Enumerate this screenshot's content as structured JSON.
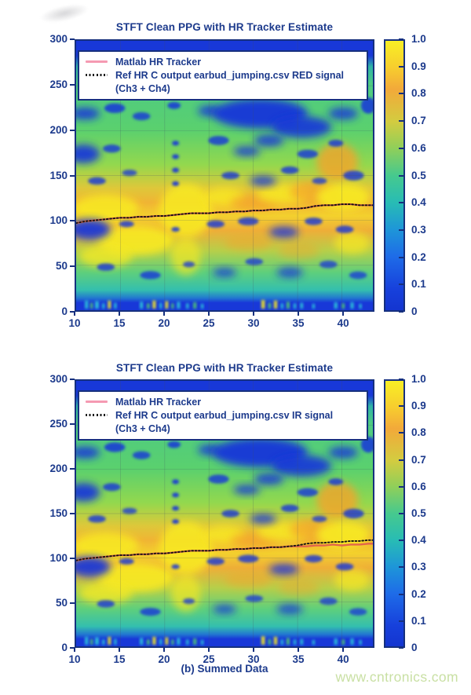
{
  "caption": "(b) Summed Data",
  "watermark": "www.cntronics.com",
  "text_color": "#1c3a8c",
  "axis_color": "#16307e",
  "chart_data": [
    {
      "type": "heatmap",
      "title": "STFT Clean PPG with HR Tracker Estimate",
      "xlabel": "",
      "ylabel": "",
      "x_range": [
        10,
        43.5
      ],
      "y_range": [
        0,
        300
      ],
      "x_ticks": [
        "10",
        "15",
        "20",
        "25",
        "30",
        "35",
        "40"
      ],
      "y_ticks": [
        "300",
        "250",
        "200",
        "150",
        "100",
        "50",
        "0"
      ],
      "grid": true,
      "colorbar_range": [
        0,
        1
      ],
      "colorbar_ticks": [
        "1.0",
        "0.9",
        "0.8",
        "0.7",
        "0.6",
        "0.5",
        "0.4",
        "0.3",
        "0.2",
        "0.1",
        "0"
      ],
      "colormap": "parula",
      "legend_position": "upper left inside plot",
      "legend_lines": [
        {
          "style": "solid",
          "color": "#f59ab2",
          "text": "Matlab HR Tracker"
        },
        {
          "style": "dotted",
          "color": "#141414",
          "text": "Ref HR C output earbud_jumping.csv RED signal"
        },
        {
          "style": "none",
          "color": "",
          "text": "(Ch3 + Ch4)"
        }
      ],
      "heatmap_summary": "Normalized STFT power spectrogram: dark blue bands along the top (280-300) and bottom (0-8) edges, green field with scattered dark blue low-power blobs, broad yellow-orange high-energy ridge around 90-140 following the heart-rate track; bright yellow patches near x=11-20 at 40-75 and around x=22-25.",
      "series_x": [
        10,
        11,
        12,
        13,
        14,
        15,
        16,
        17,
        18,
        19,
        20,
        21,
        22,
        23,
        24,
        25,
        26,
        27,
        28,
        29,
        30,
        31,
        32,
        33,
        34,
        35,
        36,
        37,
        38,
        39,
        40,
        41,
        42,
        43,
        43.5
      ],
      "series": [
        {
          "name": "Matlab HR Tracker",
          "color": "#e2664a",
          "width": 2.4,
          "dash": "",
          "y": [
            97,
            99,
            100,
            101,
            102,
            103,
            103,
            104,
            104,
            105,
            105,
            106,
            107,
            108,
            108,
            108,
            109,
            109,
            110,
            110,
            111,
            111,
            112,
            112,
            113,
            113,
            114,
            116,
            117,
            117,
            118,
            118,
            117,
            117,
            117
          ]
        },
        {
          "name": "Ref HR C output earbud_jumping.csv RED signal (Ch3 + Ch4)",
          "color": "#141414",
          "width": 1.9,
          "dash": "1.8 2.6",
          "y": [
            97,
            99,
            100,
            101,
            102,
            103,
            103,
            104,
            104,
            105,
            105,
            106,
            107,
            108,
            108,
            108,
            109,
            109,
            110,
            110,
            111,
            111,
            112,
            112,
            113,
            113,
            114,
            116,
            117,
            117,
            118,
            118,
            117,
            117,
            117
          ]
        }
      ]
    },
    {
      "type": "heatmap",
      "title": "STFT Clean PPG with HR Tracker Estimate",
      "xlabel": "",
      "ylabel": "",
      "x_range": [
        10,
        43.5
      ],
      "y_range": [
        0,
        300
      ],
      "x_ticks": [
        "10",
        "15",
        "20",
        "25",
        "30",
        "35",
        "40"
      ],
      "y_ticks": [
        "300",
        "250",
        "200",
        "150",
        "100",
        "50",
        "0"
      ],
      "grid": true,
      "colorbar_range": [
        0,
        1
      ],
      "colorbar_ticks": [
        "1.0",
        "0.9",
        "0.8",
        "0.7",
        "0.6",
        "0.5",
        "0.4",
        "0.3",
        "0.2",
        "0.1",
        "0"
      ],
      "colormap": "parula",
      "legend_position": "upper left inside plot",
      "legend_lines": [
        {
          "style": "solid",
          "color": "#f59ab2",
          "text": "Matlab HR Tracker"
        },
        {
          "style": "dotted",
          "color": "#141414",
          "text": "Ref HR C output earbud_jumping.csv IR signal"
        },
        {
          "style": "none",
          "color": "",
          "text": "(Ch3 + Ch4)"
        }
      ],
      "heatmap_summary": "Same spectrogram structure as the RED-signal panel; the dotted IR reference HR rises to ~120 at the right while the Matlab tracker stays near ~115.",
      "series_x": [
        10,
        11,
        12,
        13,
        14,
        15,
        16,
        17,
        18,
        19,
        20,
        21,
        22,
        23,
        24,
        25,
        26,
        27,
        28,
        29,
        30,
        31,
        32,
        33,
        34,
        35,
        36,
        37,
        38,
        39,
        40,
        41,
        42,
        43,
        43.5
      ],
      "series": [
        {
          "name": "Matlab HR Tracker",
          "color": "#e2664a",
          "width": 2.4,
          "dash": "",
          "y": [
            97,
            99,
            100,
            101,
            102,
            103,
            103,
            104,
            104,
            105,
            105,
            106,
            107,
            108,
            108,
            108,
            109,
            109,
            110,
            110,
            111,
            111,
            112,
            112,
            113,
            113,
            113,
            114,
            114,
            115,
            114,
            115,
            115,
            116,
            116
          ]
        },
        {
          "name": "Ref HR C output earbud_jumping.csv IR signal (Ch3 + Ch4)",
          "color": "#141414",
          "width": 1.9,
          "dash": "1.8 2.6",
          "y": [
            97,
            99,
            100,
            101,
            102,
            103,
            103,
            104,
            104,
            105,
            105,
            106,
            107,
            108,
            108,
            108,
            109,
            109,
            110,
            110,
            111,
            111,
            112,
            112,
            113,
            114,
            116,
            117,
            117,
            118,
            118,
            119,
            119,
            120,
            120
          ]
        }
      ]
    }
  ],
  "heatmap_texture": {
    "colors": {
      "db": "#1636da",
      "yl": "#f8ea22",
      "or": "#f4a42c",
      "cy": "#2fd0d8",
      "gr": "#55d06a"
    },
    "base_gradient": [
      [
        0,
        "#1838d8"
      ],
      [
        0.055,
        "#1838d8"
      ],
      [
        0.095,
        "#2fb3a6"
      ],
      [
        0.16,
        "#4ecb82"
      ],
      [
        0.33,
        "#5ad06e"
      ],
      [
        0.46,
        "#93d84e"
      ],
      [
        0.545,
        "#ddc83a"
      ],
      [
        0.6,
        "#f0b434"
      ],
      [
        0.65,
        "#f3d02e"
      ],
      [
        0.705,
        "#eeae38"
      ],
      [
        0.78,
        "#b6cf4a"
      ],
      [
        0.86,
        "#5ecf7c"
      ],
      [
        0.925,
        "#34bfae"
      ],
      [
        0.955,
        "#2277d0"
      ],
      [
        0.972,
        "#1838d8"
      ],
      [
        1,
        "#1838d8"
      ]
    ],
    "colorbar_gradient": [
      [
        0,
        "#f8ef25"
      ],
      [
        0.1,
        "#f7cd2e"
      ],
      [
        0.18,
        "#f2a93a"
      ],
      [
        0.3,
        "#d3cc40"
      ],
      [
        0.4,
        "#8fcf5a"
      ],
      [
        0.5,
        "#46c98e"
      ],
      [
        0.6,
        "#28bcb4"
      ],
      [
        0.7,
        "#1e96d8"
      ],
      [
        0.8,
        "#1e6ce8"
      ],
      [
        0.92,
        "#1741dc"
      ],
      [
        1,
        "#1435d0"
      ]
    ],
    "blue_blobs": [
      [
        0.03,
        0.27,
        0.05,
        0.022,
        0.9
      ],
      [
        0.13,
        0.25,
        0.035,
        0.018,
        0.85
      ],
      [
        0.22,
        0.28,
        0.03,
        0.015,
        0.8
      ],
      [
        0.33,
        0.24,
        0.022,
        0.013,
        0.85
      ],
      [
        0.45,
        0.26,
        0.04,
        0.02,
        0.85
      ],
      [
        0.62,
        0.27,
        0.16,
        0.055,
        0.95
      ],
      [
        0.76,
        0.32,
        0.1,
        0.04,
        0.9
      ],
      [
        0.9,
        0.27,
        0.05,
        0.022,
        0.85
      ],
      [
        0.985,
        0.24,
        0.025,
        0.03,
        0.85
      ],
      [
        0.025,
        0.42,
        0.055,
        0.035,
        0.92
      ],
      [
        0.12,
        0.4,
        0.03,
        0.015,
        0.8
      ],
      [
        0.335,
        0.38,
        0.012,
        0.009,
        0.9
      ],
      [
        0.335,
        0.43,
        0.012,
        0.009,
        0.9
      ],
      [
        0.48,
        0.37,
        0.035,
        0.017,
        0.8
      ],
      [
        0.575,
        0.41,
        0.045,
        0.018,
        0.85
      ],
      [
        0.65,
        0.37,
        0.05,
        0.022,
        0.85
      ],
      [
        0.78,
        0.42,
        0.035,
        0.016,
        0.8
      ],
      [
        0.875,
        0.38,
        0.025,
        0.013,
        0.8
      ],
      [
        0.07,
        0.52,
        0.03,
        0.014,
        0.8
      ],
      [
        0.18,
        0.49,
        0.025,
        0.012,
        0.75
      ],
      [
        0.335,
        0.48,
        0.012,
        0.009,
        0.9
      ],
      [
        0.335,
        0.53,
        0.012,
        0.009,
        0.9
      ],
      [
        0.52,
        0.5,
        0.03,
        0.014,
        0.8
      ],
      [
        0.63,
        0.52,
        0.045,
        0.018,
        0.85
      ],
      [
        0.72,
        0.48,
        0.03,
        0.014,
        0.8
      ],
      [
        0.82,
        0.52,
        0.025,
        0.012,
        0.75
      ],
      [
        0.935,
        0.5,
        0.035,
        0.018,
        0.8
      ],
      [
        0.045,
        0.7,
        0.07,
        0.038,
        0.92
      ],
      [
        0.17,
        0.68,
        0.025,
        0.012,
        0.8
      ],
      [
        0.335,
        0.7,
        0.014,
        0.009,
        0.85
      ],
      [
        0.47,
        0.68,
        0.03,
        0.014,
        0.8
      ],
      [
        0.58,
        0.67,
        0.035,
        0.015,
        0.8
      ],
      [
        0.7,
        0.71,
        0.05,
        0.02,
        0.85
      ],
      [
        0.8,
        0.67,
        0.03,
        0.014,
        0.8
      ],
      [
        0.905,
        0.7,
        0.03,
        0.014,
        0.8
      ],
      [
        0.1,
        0.84,
        0.03,
        0.014,
        0.8
      ],
      [
        0.25,
        0.87,
        0.035,
        0.015,
        0.8
      ],
      [
        0.38,
        0.83,
        0.02,
        0.011,
        0.75
      ],
      [
        0.5,
        0.86,
        0.04,
        0.017,
        0.8
      ],
      [
        0.6,
        0.82,
        0.03,
        0.013,
        0.75
      ],
      [
        0.72,
        0.86,
        0.045,
        0.019,
        0.8
      ],
      [
        0.85,
        0.83,
        0.03,
        0.014,
        0.75
      ],
      [
        0.95,
        0.87,
        0.03,
        0.014,
        0.75
      ]
    ],
    "warm_blobs": [
      [
        0.1,
        0.62,
        0.11,
        0.05,
        "yl",
        0.85
      ],
      [
        0.2,
        0.74,
        0.13,
        0.055,
        "yl",
        0.9
      ],
      [
        0.1,
        0.8,
        0.09,
        0.04,
        "yl",
        0.75
      ],
      [
        0.37,
        0.63,
        0.09,
        0.1,
        "yl",
        0.85
      ],
      [
        0.37,
        0.8,
        0.05,
        0.07,
        "yl",
        0.65
      ],
      [
        0.5,
        0.58,
        0.07,
        0.035,
        "yl",
        0.8
      ],
      [
        0.6,
        0.6,
        0.08,
        0.03,
        "or",
        0.65
      ],
      [
        0.7,
        0.57,
        0.09,
        0.035,
        "yl",
        0.8
      ],
      [
        0.8,
        0.56,
        0.08,
        0.04,
        "or",
        0.7
      ],
      [
        0.88,
        0.45,
        0.07,
        0.07,
        "or",
        0.8
      ],
      [
        0.9,
        0.58,
        0.09,
        0.05,
        "yl",
        0.9
      ],
      [
        0.93,
        0.75,
        0.06,
        0.04,
        "yl",
        0.7
      ],
      [
        0.58,
        0.75,
        0.08,
        0.03,
        "or",
        0.45
      ],
      [
        0.75,
        0.78,
        0.07,
        0.03,
        "or",
        0.4
      ]
    ],
    "bottom_ticks": [
      [
        0.035,
        0.01,
        0.03,
        "cy"
      ],
      [
        0.052,
        0.008,
        0.022,
        "gr"
      ],
      [
        0.07,
        0.012,
        0.028,
        "cy"
      ],
      [
        0.092,
        0.008,
        0.02,
        "cy"
      ],
      [
        0.112,
        0.01,
        0.03,
        "yl"
      ],
      [
        0.132,
        0.008,
        0.022,
        "cy"
      ],
      [
        0.22,
        0.01,
        0.026,
        "cy"
      ],
      [
        0.243,
        0.009,
        0.02,
        "gr"
      ],
      [
        0.263,
        0.011,
        0.03,
        "yl"
      ],
      [
        0.285,
        0.008,
        0.022,
        "cy"
      ],
      [
        0.305,
        0.01,
        0.028,
        "yl"
      ],
      [
        0.325,
        0.008,
        0.02,
        "gr"
      ],
      [
        0.345,
        0.01,
        0.026,
        "cy"
      ],
      [
        0.375,
        0.008,
        0.02,
        "cy"
      ],
      [
        0.4,
        0.01,
        0.024,
        "gr"
      ],
      [
        0.425,
        0.008,
        0.018,
        "cy"
      ],
      [
        0.63,
        0.012,
        0.032,
        "yl"
      ],
      [
        0.652,
        0.009,
        0.022,
        "gr"
      ],
      [
        0.672,
        0.011,
        0.03,
        "yl"
      ],
      [
        0.694,
        0.008,
        0.02,
        "cy"
      ],
      [
        0.714,
        0.01,
        0.026,
        "gr"
      ],
      [
        0.737,
        0.008,
        0.02,
        "cy"
      ],
      [
        0.76,
        0.009,
        0.022,
        "cy"
      ],
      [
        0.8,
        0.008,
        0.018,
        "cy"
      ],
      [
        0.875,
        0.01,
        0.024,
        "cy"
      ],
      [
        0.9,
        0.009,
        0.02,
        "gr"
      ],
      [
        0.93,
        0.01,
        0.024,
        "cy"
      ],
      [
        0.958,
        0.008,
        0.018,
        "cy"
      ]
    ]
  }
}
